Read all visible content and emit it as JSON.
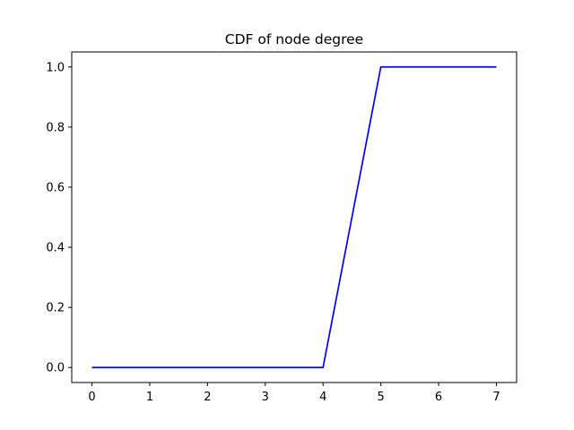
{
  "chart_data": {
    "type": "line",
    "title": "CDF of node degree",
    "xlabel": "",
    "ylabel": "",
    "xlim": [
      -0.35,
      7.35
    ],
    "ylim": [
      -0.05,
      1.05
    ],
    "x_ticks": [
      0,
      1,
      2,
      3,
      4,
      5,
      6,
      7
    ],
    "y_ticks": [
      "0.0",
      "0.2",
      "0.4",
      "0.6",
      "0.8",
      "1.0"
    ],
    "grid": false,
    "series": [
      {
        "color": "#0000ff",
        "x": [
          0,
          1,
          2,
          3,
          4,
          5,
          6,
          7
        ],
        "y": [
          0.0,
          0.0,
          0.0,
          0.0,
          0.0,
          1.0,
          1.0,
          1.0
        ]
      }
    ]
  }
}
